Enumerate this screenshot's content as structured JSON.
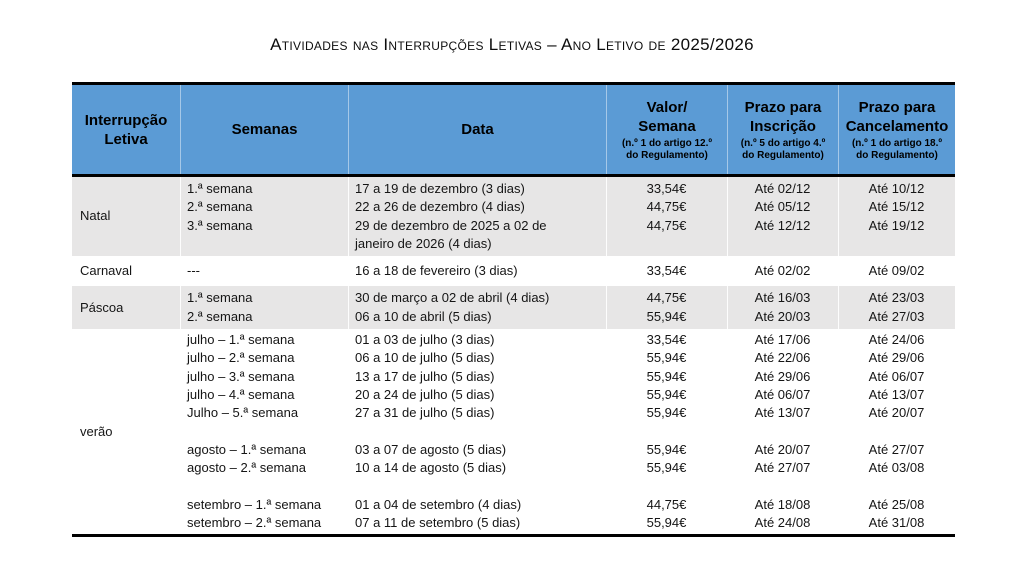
{
  "title": "Atividades nas Interrupções Letivas – Ano Letivo de 2025/2026",
  "colors": {
    "header_bg": "#5B9BD5",
    "shaded_row_bg": "#E7E6E6",
    "border": "#000000"
  },
  "table": {
    "headers": [
      {
        "label": "Interrupção\nLetiva",
        "note": ""
      },
      {
        "label": "Semanas",
        "note": ""
      },
      {
        "label": "Data",
        "note": ""
      },
      {
        "label": "Valor/\nSemana",
        "note": "(n.º 1 do artigo 12.º\ndo Regulamento)"
      },
      {
        "label": "Prazo para\nInscrição",
        "note": "(n.º 5 do artigo 4.º\ndo Regulamento)"
      },
      {
        "label": "Prazo para\nCancelamento",
        "note": "(n.º 1 do artigo 18.º\ndo Regulamento)"
      }
    ],
    "rows": [
      {
        "period": "Natal",
        "shaded": true,
        "lines": [
          {
            "semana": "1.ª semana",
            "data": "17 a 19 de dezembro (3 dias)",
            "valor": "33,54€",
            "inscricao": "Até 02/12",
            "cancelamento": "Até 10/12"
          },
          {
            "semana": "2.ª semana",
            "data": "22 a 26 de dezembro (4 dias)",
            "valor": "44,75€",
            "inscricao": "Até 05/12",
            "cancelamento": "Até 15/12"
          },
          {
            "semana": "3.ª semana",
            "data": "29 de dezembro de 2025 a 02 de\njaneiro de 2026 (4 dias)",
            "valor": "44,75€",
            "inscricao": "Até 12/12",
            "cancelamento": "Até 19/12"
          }
        ]
      },
      {
        "period": "Carnaval",
        "shaded": false,
        "lines": [
          {
            "semana": "---",
            "data": "16 a 18 de fevereiro (3 dias)",
            "valor": "33,54€",
            "inscricao": "Até 02/02",
            "cancelamento": "Até 09/02"
          }
        ]
      },
      {
        "period": "Páscoa",
        "shaded": true,
        "lines": [
          {
            "semana": "1.ª semana",
            "data": "30 de março a 02 de abril (4 dias)",
            "valor": "44,75€",
            "inscricao": "Até 16/03",
            "cancelamento": "Até 23/03"
          },
          {
            "semana": "2.ª semana",
            "data": "06 a 10 de abril (5 dias)",
            "valor": "55,94€",
            "inscricao": "Até 20/03",
            "cancelamento": "Até 27/03"
          }
        ]
      },
      {
        "period": "verão",
        "shaded": false,
        "lines": [
          {
            "semana": "julho – 1.ª semana",
            "data": "01 a 03 de julho (3 dias)",
            "valor": "33,54€",
            "inscricao": "Até 17/06",
            "cancelamento": "Até 24/06"
          },
          {
            "semana": "julho – 2.ª semana",
            "data": "06 a 10 de julho (5 dias)",
            "valor": "55,94€",
            "inscricao": "Até 22/06",
            "cancelamento": "Até 29/06"
          },
          {
            "semana": "julho – 3.ª semana",
            "data": "13 a 17 de julho (5 dias)",
            "valor": "55,94€",
            "inscricao": "Até 29/06",
            "cancelamento": "Até 06/07"
          },
          {
            "semana": "julho – 4.ª semana",
            "data": "20 a 24 de julho (5 dias)",
            "valor": "55,94€",
            "inscricao": "Até 06/07",
            "cancelamento": "Até 13/07"
          },
          {
            "semana": "Julho – 5.ª semana",
            "data": "27 a 31 de julho (5 dias)",
            "valor": "55,94€",
            "inscricao": "Até 13/07",
            "cancelamento": "Até 20/07"
          },
          {
            "semana": "",
            "data": "",
            "valor": "",
            "inscricao": "",
            "cancelamento": ""
          },
          {
            "semana": "agosto – 1.ª semana",
            "data": "03 a 07 de agosto (5 dias)",
            "valor": "55,94€",
            "inscricao": "Até 20/07",
            "cancelamento": "Até 27/07"
          },
          {
            "semana": "agosto – 2.ª semana",
            "data": "10 a 14 de agosto (5 dias)",
            "valor": "55,94€",
            "inscricao": "Até 27/07",
            "cancelamento": "Até 03/08"
          },
          {
            "semana": "",
            "data": "",
            "valor": "",
            "inscricao": "",
            "cancelamento": ""
          },
          {
            "semana": "setembro – 1.ª semana",
            "data": "01 a 04 de setembro (4 dias)",
            "valor": "44,75€",
            "inscricao": "Até 18/08",
            "cancelamento": "Até 25/08"
          },
          {
            "semana": "setembro – 2.ª semana",
            "data": "07 a 11 de setembro (5 dias)",
            "valor": "55,94€",
            "inscricao": "Até 24/08",
            "cancelamento": "Até 31/08"
          }
        ]
      }
    ]
  }
}
